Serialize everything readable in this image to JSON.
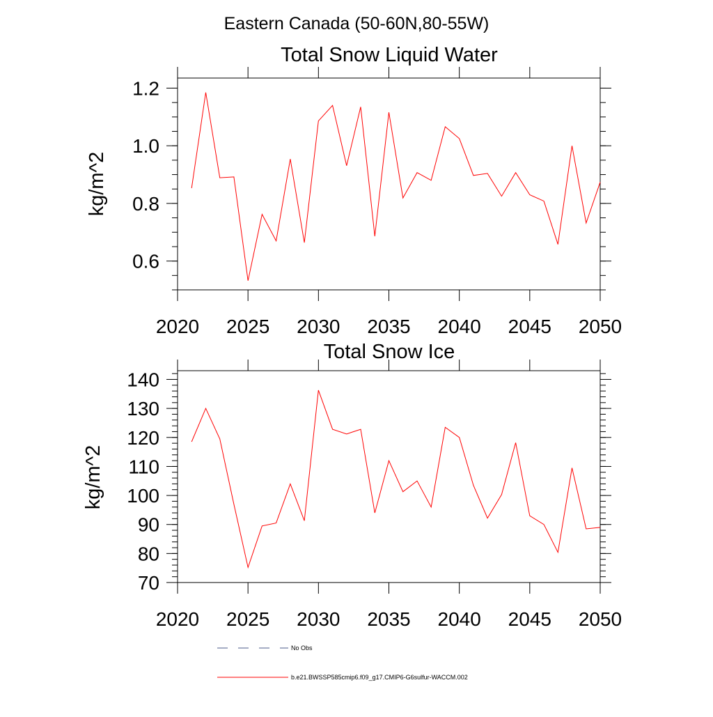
{
  "figure": {
    "title": "Eastern Canada (50-60N,80-55W)"
  },
  "legend": {
    "entries": [
      {
        "label": "No Obs",
        "style": "dashed",
        "color": "#4a5a8a"
      },
      {
        "label": "b.e21.BWSSP585cmip6.f09_g17.CMIP6-G6sulfur-WACCM.002",
        "style": "solid",
        "color": "#ff0000"
      }
    ]
  },
  "chart_data": [
    {
      "type": "line",
      "title": "Total Snow Liquid Water",
      "xlabel": "",
      "ylabel": "kg/m^2",
      "xlim": [
        2020,
        2050
      ],
      "ylim": [
        0.5,
        1.235
      ],
      "x_ticks": [
        2020,
        2025,
        2030,
        2035,
        2040,
        2045,
        2050
      ],
      "x_tick_labels": [
        "2020",
        "2025",
        "2030",
        "2035",
        "2040",
        "2045",
        "2050"
      ],
      "y_ticks": [
        0.6,
        0.8,
        1.0,
        1.2
      ],
      "y_tick_labels": [
        "0.6",
        "0.8",
        "1.0",
        "1.2"
      ],
      "y_minor_step": 0.05,
      "grid": false,
      "series": [
        {
          "color": "#ff0000",
          "x": [
            2021,
            2022,
            2023,
            2024,
            2025,
            2026,
            2027,
            2028,
            2029,
            2030,
            2031,
            2032,
            2033,
            2034,
            2035,
            2036,
            2037,
            2038,
            2039,
            2040,
            2041,
            2042,
            2043,
            2044,
            2045,
            2046,
            2047,
            2048,
            2049,
            2050
          ],
          "y": [
            0.853,
            1.185,
            0.889,
            0.892,
            0.532,
            0.762,
            0.67,
            0.954,
            0.664,
            1.086,
            1.14,
            0.931,
            1.135,
            0.686,
            1.116,
            0.819,
            0.907,
            0.88,
            1.066,
            1.025,
            0.897,
            0.904,
            0.825,
            0.907,
            0.83,
            0.808,
            0.658,
            1.0,
            0.732,
            0.874
          ]
        }
      ]
    },
    {
      "type": "line",
      "title": "Total Snow Ice",
      "xlabel": "",
      "ylabel": "kg/m^2",
      "xlim": [
        2020,
        2050
      ],
      "ylim": [
        70,
        143
      ],
      "x_ticks": [
        2020,
        2025,
        2030,
        2035,
        2040,
        2045,
        2050
      ],
      "x_tick_labels": [
        "2020",
        "2025",
        "2030",
        "2035",
        "2040",
        "2045",
        "2050"
      ],
      "y_ticks": [
        70,
        80,
        90,
        100,
        110,
        120,
        130,
        140
      ],
      "y_tick_labels": [
        "70",
        "80",
        "90",
        "100",
        "110",
        "120",
        "130",
        "140"
      ],
      "y_minor_step": 2,
      "grid": false,
      "series": [
        {
          "color": "#ff0000",
          "x": [
            2021,
            2022,
            2023,
            2024,
            2025,
            2026,
            2027,
            2028,
            2029,
            2030,
            2031,
            2032,
            2033,
            2034,
            2035,
            2036,
            2037,
            2038,
            2039,
            2040,
            2041,
            2042,
            2043,
            2044,
            2045,
            2046,
            2047,
            2048,
            2049,
            2050
          ],
          "y": [
            118.5,
            130.0,
            119.5,
            97.0,
            75.2,
            89.5,
            90.5,
            104.0,
            91.3,
            136.3,
            122.8,
            121.2,
            122.8,
            94.0,
            112.0,
            101.3,
            105.0,
            96.0,
            123.5,
            120.0,
            103.5,
            92.2,
            100.3,
            118.2,
            93.0,
            90.0,
            80.4,
            109.5,
            88.5,
            89.0
          ]
        }
      ]
    }
  ]
}
